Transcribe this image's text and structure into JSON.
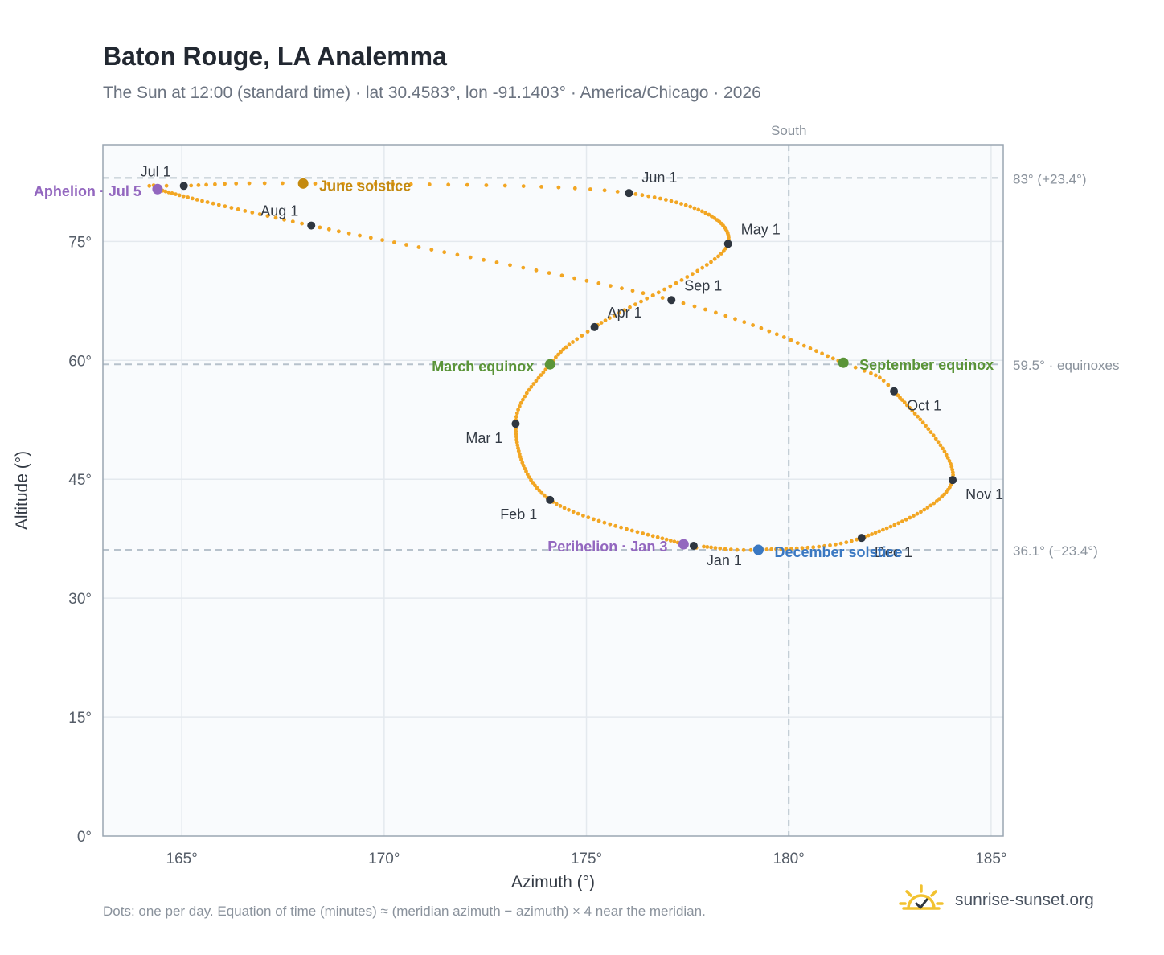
{
  "title": "Baton Rouge, LA Analemma",
  "subtitle": "The Sun at 12:00 (standard time) · lat 30.4583°, lon -91.1403° · America/Chicago · 2026",
  "footnote": "Dots: one per day. Equation of time (minutes) ≈ (meridian azimuth − azimuth) × 4 near the meridian.",
  "brand": {
    "name": "sunrise-sunset.org",
    "icon": "sun-logo-icon"
  },
  "colors": {
    "curve": "#f2a623",
    "month_marker": "#2f3640",
    "solstice_june": "#c48a10",
    "solstice_december": "#3a78c2",
    "equinox": "#5a9438",
    "apsis": "#9367bf",
    "reference_line": "#b7c2cc",
    "grid": "#e4e9ee",
    "plot_background": "#f9fbfd"
  },
  "chart_data": {
    "type": "scatter",
    "xlabel": "Azimuth (°)",
    "ylabel": "Altitude (°)",
    "xlim": [
      163.05,
      185.3
    ],
    "ylim": [
      0,
      87.2
    ],
    "xticks": [
      165,
      170,
      175,
      180,
      185
    ],
    "xtick_labels": [
      "165°",
      "170°",
      "175°",
      "180°",
      "185°"
    ],
    "yticks": [
      0,
      15,
      30,
      45,
      60,
      75
    ],
    "ytick_labels": [
      "0°",
      "15°",
      "30°",
      "45°",
      "60°",
      "75°"
    ],
    "grid": true,
    "south_line": {
      "azimuth": 180,
      "label": "South"
    },
    "reference_lines": [
      {
        "altitude": 83.0,
        "label": "83° (+23.4°)"
      },
      {
        "altitude": 59.5,
        "label": "59.5° · equinoxes"
      },
      {
        "altitude": 36.1,
        "label": "36.1° (−23.4°)"
      }
    ],
    "anchors": [
      {
        "name": "Jan 1",
        "day": 0,
        "az": 177.65,
        "alt": 36.6
      },
      {
        "day": 2,
        "az": 177.4,
        "alt": 36.8
      },
      {
        "name": "Feb 1",
        "day": 31,
        "az": 174.1,
        "alt": 42.4
      },
      {
        "name": "Mar 1",
        "day": 59,
        "az": 173.25,
        "alt": 52.0
      },
      {
        "day": 78,
        "az": 174.1,
        "alt": 59.5
      },
      {
        "name": "Apr 1",
        "day": 90,
        "az": 175.2,
        "alt": 64.2
      },
      {
        "name": "May 1",
        "day": 120,
        "az": 178.5,
        "alt": 74.7
      },
      {
        "name": "Jun 1",
        "day": 151,
        "az": 176.05,
        "alt": 81.1
      },
      {
        "day": 171,
        "az": 168.0,
        "alt": 82.3
      },
      {
        "name": "Jul 1",
        "day": 181,
        "az": 165.05,
        "alt": 82.0
      },
      {
        "day": 185,
        "az": 164.4,
        "alt": 81.6
      },
      {
        "name": "Aug 1",
        "day": 212,
        "az": 168.2,
        "alt": 77.0
      },
      {
        "name": "Sep 1",
        "day": 243,
        "az": 177.1,
        "alt": 67.6
      },
      {
        "day": 265,
        "az": 181.35,
        "alt": 59.7
      },
      {
        "name": "Oct 1",
        "day": 273,
        "az": 182.6,
        "alt": 56.1
      },
      {
        "name": "Nov 1",
        "day": 304,
        "az": 184.05,
        "alt": 44.9
      },
      {
        "name": "Dec 1",
        "day": 334,
        "az": 181.8,
        "alt": 37.6
      },
      {
        "day": 354,
        "az": 179.25,
        "alt": 36.1
      },
      {
        "day": 364,
        "az": 177.9,
        "alt": 36.5
      }
    ],
    "month_markers": [
      {
        "label": "Jan 1",
        "az": 177.65,
        "alt": 36.6,
        "anchor": "start",
        "dx": 16,
        "dy": 24
      },
      {
        "label": "Feb 1",
        "az": 174.1,
        "alt": 42.4,
        "anchor": "end",
        "dx": -16,
        "dy": 24
      },
      {
        "label": "Mar 1",
        "az": 173.25,
        "alt": 52.0,
        "anchor": "end",
        "dx": -16,
        "dy": 24
      },
      {
        "label": "Apr 1",
        "az": 175.2,
        "alt": 64.2,
        "anchor": "start",
        "dx": 16,
        "dy": -12
      },
      {
        "label": "May 1",
        "az": 178.5,
        "alt": 74.7,
        "anchor": "start",
        "dx": 16,
        "dy": -12
      },
      {
        "label": "Jun 1",
        "az": 176.05,
        "alt": 81.1,
        "anchor": "start",
        "dx": 16,
        "dy": -13
      },
      {
        "label": "Jul 1",
        "az": 165.05,
        "alt": 82.0,
        "anchor": "end",
        "dx": -16,
        "dy": -12
      },
      {
        "label": "Aug 1",
        "az": 168.2,
        "alt": 77.0,
        "anchor": "end",
        "dx": -16,
        "dy": -12
      },
      {
        "label": "Sep 1",
        "az": 177.1,
        "alt": 67.6,
        "anchor": "start",
        "dx": 16,
        "dy": -12
      },
      {
        "label": "Oct 1",
        "az": 182.6,
        "alt": 56.1,
        "anchor": "start",
        "dx": 16,
        "dy": 24
      },
      {
        "label": "Nov 1",
        "az": 184.05,
        "alt": 44.9,
        "anchor": "start",
        "dx": 16,
        "dy": 24
      },
      {
        "label": "Dec 1",
        "az": 181.8,
        "alt": 37.6,
        "anchor": "start",
        "dx": 16,
        "dy": 24
      }
    ],
    "events": [
      {
        "label": "June solstice",
        "az": 168.0,
        "alt": 82.3,
        "color": "#c48a10",
        "anchor": "start",
        "dx": 20,
        "dy": 9
      },
      {
        "label": "December solstice",
        "az": 179.25,
        "alt": 36.1,
        "color": "#3a78c2",
        "anchor": "start",
        "dx": 20,
        "dy": 9
      },
      {
        "label": "March equinox",
        "az": 174.1,
        "alt": 59.5,
        "color": "#5a9438",
        "anchor": "end",
        "dx": -20,
        "dy": 9
      },
      {
        "label": "September equinox",
        "az": 181.35,
        "alt": 59.7,
        "color": "#5a9438",
        "anchor": "start",
        "dx": 20,
        "dy": 9
      },
      {
        "label": "Aphelion · Jul 5",
        "az": 164.4,
        "alt": 81.6,
        "color": "#9367bf",
        "anchor": "end",
        "dx": -20,
        "dy": 9
      },
      {
        "label": "Perihelion · Jan 3",
        "az": 177.4,
        "alt": 36.8,
        "color": "#9367bf",
        "anchor": "end",
        "dx": -20,
        "dy": 9
      }
    ]
  }
}
